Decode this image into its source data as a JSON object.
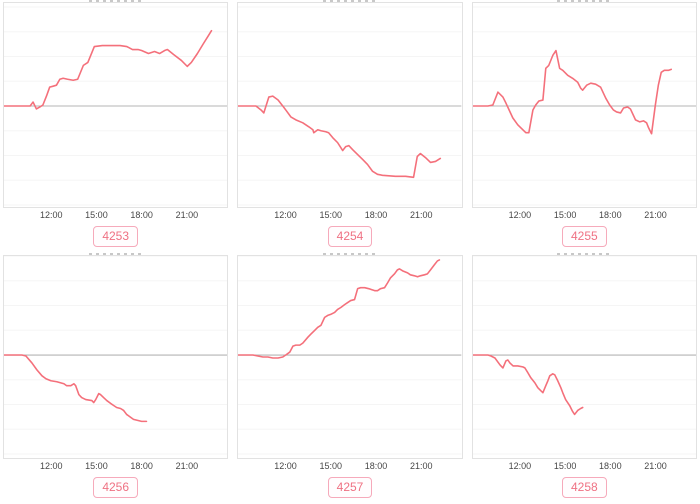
{
  "colors": {
    "line": "#f4707b",
    "zero_line": "#b4b4b4",
    "grid_line": "#f5f5f5",
    "panel_border": "#e2e2e2",
    "chip_border": "#f6aabb",
    "chip_text": "#ef7183",
    "tick_text": "#474747"
  },
  "y_axis_note": "y axis has no tick labels; values are offsets relative to the gray zero line, estimated from the plot",
  "chart_data": [
    {
      "type": "line",
      "title_label": "4253",
      "x_tick_labels": [
        "12:00",
        "15:00",
        "18:00",
        "21:00"
      ],
      "x_tick_hours": [
        12,
        15,
        18,
        21
      ],
      "x_range_hours": [
        8.8,
        23.75
      ],
      "zero_baseline": 0,
      "x": [
        8.8,
        9.8,
        10.55,
        10.74,
        10.97,
        11.2,
        11.4,
        11.64,
        11.86,
        12.09,
        12.31,
        12.54,
        12.76,
        13.06,
        13.43,
        13.73,
        14.11,
        14.41,
        14.85,
        15.38,
        15.98,
        16.57,
        17.02,
        17.4,
        17.77,
        18.01,
        18.47,
        18.88,
        19.21,
        19.55,
        19.74,
        20.15,
        20.67,
        21.07,
        21.34,
        21.75,
        22.15,
        22.48,
        22.69
      ],
      "y": [
        0,
        0,
        0,
        4,
        -3,
        -1,
        1,
        10,
        19,
        20,
        21,
        27,
        28,
        27,
        26,
        27,
        41,
        44,
        60,
        61,
        61,
        61,
        60,
        57,
        57,
        56,
        53,
        55,
        53,
        56,
        57,
        52,
        46,
        40,
        44,
        53,
        63,
        71,
        76
      ]
    },
    {
      "type": "line",
      "title_label": "4254",
      "x_tick_labels": [
        "12:00",
        "15:00",
        "18:00",
        "21:00"
      ],
      "x_tick_hours": [
        12,
        15,
        18,
        21
      ],
      "x_range_hours": [
        8.8,
        23.75
      ],
      "zero_baseline": 0,
      "x": [
        8.8,
        9.8,
        10.0,
        10.34,
        10.53,
        10.86,
        11.13,
        11.48,
        11.8,
        12.0,
        12.34,
        12.67,
        13.14,
        13.54,
        13.81,
        13.87,
        14.14,
        14.35,
        14.68,
        14.87,
        15.14,
        15.47,
        15.68,
        15.81,
        16.01,
        16.22,
        16.47,
        16.81,
        17.14,
        17.47,
        17.81,
        18.14,
        18.47,
        19.34,
        20.01,
        20.55,
        20.8,
        21.01,
        21.34,
        21.69,
        22.02,
        22.34
      ],
      "y": [
        0,
        0,
        0,
        -4,
        -7,
        9,
        10,
        6,
        0,
        -4,
        -11,
        -14,
        -17,
        -21,
        -24,
        -27,
        -24,
        -25,
        -26,
        -27,
        -32,
        -37,
        -42,
        -45,
        -41,
        -40,
        -44,
        -49,
        -54,
        -59,
        -66,
        -69,
        -70,
        -71,
        -71,
        -72,
        -51,
        -48,
        -52,
        -57,
        -56,
        -53
      ]
    },
    {
      "type": "line",
      "title_label": "4255",
      "x_tick_labels": [
        "12:00",
        "15:00",
        "18:00",
        "21:00"
      ],
      "x_tick_hours": [
        12,
        15,
        18,
        21
      ],
      "x_range_hours": [
        8.8,
        23.75
      ],
      "zero_baseline": 0,
      "x": [
        8.8,
        9.8,
        10.13,
        10.47,
        10.8,
        11.0,
        11.46,
        11.8,
        12.34,
        12.54,
        12.81,
        13.0,
        13.21,
        13.48,
        13.67,
        13.87,
        14.14,
        14.35,
        14.6,
        14.81,
        15.14,
        15.47,
        15.81,
        16.01,
        16.14,
        16.41,
        16.68,
        17.01,
        17.34,
        17.68,
        17.95,
        18.2,
        18.41,
        18.68,
        18.88,
        19.15,
        19.34,
        19.68,
        19.95,
        20.21,
        20.42,
        20.55,
        20.75,
        21.01,
        21.21,
        21.4,
        21.61,
        21.88,
        22.07
      ],
      "y": [
        0,
        0,
        1,
        14,
        9,
        3,
        -12,
        -19,
        -27,
        -27,
        -4,
        1,
        5,
        6,
        38,
        41,
        51,
        56,
        38,
        36,
        31,
        28,
        24,
        18,
        16,
        21,
        23,
        22,
        19,
        8,
        1,
        -4,
        -6,
        -7,
        -2,
        -1,
        -3,
        -14,
        -16,
        -15,
        -17,
        -22,
        -28,
        1,
        21,
        34,
        36,
        36,
        37
      ]
    },
    {
      "type": "line",
      "title_label": "4256",
      "x_tick_labels": [
        "12:00",
        "15:00",
        "18:00",
        "21:00"
      ],
      "x_tick_hours": [
        12,
        15,
        18,
        21
      ],
      "x_range_hours": [
        8.8,
        23.75
      ],
      "zero_baseline": 0,
      "x": [
        8.8,
        10.0,
        10.27,
        10.67,
        11.0,
        11.34,
        11.61,
        11.94,
        12.34,
        12.81,
        13.0,
        13.27,
        13.48,
        13.6,
        13.81,
        14.0,
        14.27,
        14.68,
        14.81,
        14.94,
        15.14,
        15.27,
        15.47,
        15.68,
        15.95,
        16.14,
        16.34,
        16.6,
        16.81,
        17.01,
        17.28,
        17.47,
        17.74,
        18.01,
        18.34
      ],
      "y": [
        0,
        0,
        -1,
        -8,
        -15,
        -21,
        -24,
        -26,
        -27,
        -29,
        -31,
        -31,
        -29,
        -31,
        -40,
        -43,
        -45,
        -46,
        -48,
        -45,
        -39,
        -40,
        -43,
        -46,
        -49,
        -51,
        -53,
        -54,
        -56,
        -60,
        -63,
        -65,
        -66,
        -67,
        -67
      ]
    },
    {
      "type": "line",
      "title_label": "4257",
      "x_tick_labels": [
        "12:00",
        "15:00",
        "18:00",
        "21:00"
      ],
      "x_tick_hours": [
        12,
        15,
        18,
        21
      ],
      "x_range_hours": [
        8.8,
        23.75
      ],
      "zero_baseline": 0,
      "x": [
        8.8,
        9.8,
        10.13,
        10.47,
        10.8,
        11.13,
        11.48,
        11.8,
        12.0,
        12.27,
        12.48,
        12.67,
        12.94,
        13.14,
        13.48,
        13.67,
        13.94,
        14.14,
        14.35,
        14.6,
        14.81,
        15.0,
        15.27,
        15.47,
        15.68,
        15.95,
        16.14,
        16.34,
        16.6,
        16.81,
        17.01,
        17.28,
        17.55,
        17.74,
        17.95,
        18.14,
        18.34,
        18.61,
        18.82,
        19.01,
        19.28,
        19.47,
        19.61,
        19.82,
        20.15,
        20.34,
        20.61,
        20.82,
        21.01,
        21.28,
        21.48,
        21.69,
        21.94,
        22.15,
        22.28
      ],
      "y": [
        0,
        0,
        -1,
        -2,
        -2,
        -3,
        -3,
        -2,
        0,
        3,
        9,
        10,
        10,
        12,
        18,
        21,
        25,
        28,
        30,
        38,
        40,
        41,
        43,
        46,
        48,
        51,
        53,
        55,
        56,
        67,
        68,
        68,
        67,
        66,
        65,
        65,
        67,
        68,
        73,
        78,
        82,
        86,
        87,
        85,
        83,
        81,
        80,
        79,
        80,
        81,
        82,
        86,
        91,
        95,
        96
      ]
    },
    {
      "type": "line",
      "title_label": "4258",
      "x_tick_labels": [
        "12:00",
        "15:00",
        "18:00",
        "21:00"
      ],
      "x_tick_hours": [
        12,
        15,
        18,
        21
      ],
      "x_range_hours": [
        8.8,
        23.75
      ],
      "zero_baseline": 0,
      "x": [
        8.8,
        9.8,
        10.0,
        10.27,
        10.61,
        10.8,
        11.0,
        11.13,
        11.27,
        11.48,
        11.8,
        12.13,
        12.27,
        12.48,
        12.67,
        12.94,
        13.14,
        13.34,
        13.48,
        13.67,
        13.81,
        13.94,
        14.14,
        14.27,
        14.47,
        14.68,
        14.81,
        15.0,
        15.27,
        15.47,
        15.6,
        15.81,
        16.01,
        16.14
      ],
      "y": [
        0,
        0,
        -1,
        -3,
        -10,
        -13,
        -6,
        -5,
        -8,
        -11,
        -11,
        -12,
        -13,
        -18,
        -23,
        -28,
        -33,
        -36,
        -38,
        -31,
        -26,
        -21,
        -19,
        -20,
        -26,
        -33,
        -38,
        -45,
        -51,
        -57,
        -60,
        -56,
        -54,
        -53
      ]
    }
  ]
}
